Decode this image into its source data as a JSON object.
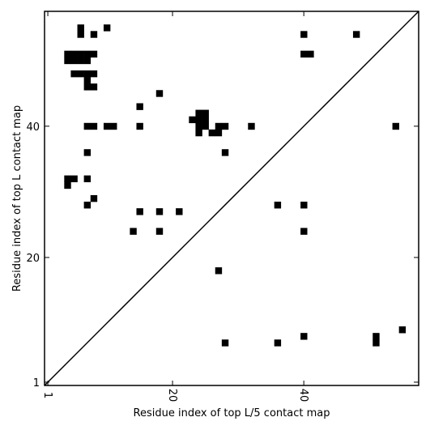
{
  "chart_data": {
    "type": "scatter",
    "xlabel": "Residue index of top L/5 contact map",
    "ylabel": "Residue index of top L contact map",
    "xlim": [
      0.5,
      57.5
    ],
    "ylim": [
      0.5,
      57.5
    ],
    "x_ticks": [
      {
        "value": 1,
        "label": "1"
      },
      {
        "value": 20,
        "label": "20"
      },
      {
        "value": 40,
        "label": "40"
      }
    ],
    "y_ticks": [
      {
        "value": 1,
        "label": "1"
      },
      {
        "value": 20,
        "label": "20"
      },
      {
        "value": 40,
        "label": "40"
      }
    ],
    "diagonal": true,
    "marker_color": "#000000",
    "series": [
      {
        "points": [
          [
            6,
            55
          ],
          [
            6,
            54
          ],
          [
            10,
            55
          ],
          [
            8,
            54
          ],
          [
            40,
            54
          ],
          [
            48,
            54
          ],
          [
            4,
            51
          ],
          [
            5,
            51
          ],
          [
            6,
            51
          ],
          [
            7,
            51
          ],
          [
            8,
            51
          ],
          [
            4,
            50
          ],
          [
            5,
            50
          ],
          [
            6,
            50
          ],
          [
            7,
            50
          ],
          [
            40,
            51
          ],
          [
            41,
            51
          ],
          [
            5,
            48
          ],
          [
            6,
            48
          ],
          [
            7,
            48
          ],
          [
            8,
            48
          ],
          [
            7,
            47
          ],
          [
            7,
            46
          ],
          [
            8,
            46
          ],
          [
            18,
            45
          ],
          [
            15,
            43
          ],
          [
            24,
            42
          ],
          [
            25,
            42
          ],
          [
            23,
            41
          ],
          [
            24,
            41
          ],
          [
            25,
            41
          ],
          [
            24,
            40
          ],
          [
            25,
            40
          ],
          [
            24,
            39
          ],
          [
            26,
            39
          ],
          [
            27,
            39
          ],
          [
            7,
            40
          ],
          [
            8,
            40
          ],
          [
            10,
            40
          ],
          [
            11,
            40
          ],
          [
            15,
            40
          ],
          [
            27,
            40
          ],
          [
            28,
            40
          ],
          [
            32,
            40
          ],
          [
            54,
            40
          ],
          [
            7,
            36
          ],
          [
            28,
            36
          ],
          [
            4,
            32
          ],
          [
            5,
            32
          ],
          [
            7,
            32
          ],
          [
            4,
            31
          ],
          [
            8,
            29
          ],
          [
            7,
            28
          ],
          [
            36,
            28
          ],
          [
            40,
            28
          ],
          [
            15,
            27
          ],
          [
            18,
            27
          ],
          [
            21,
            27
          ],
          [
            14,
            24
          ],
          [
            18,
            24
          ],
          [
            40,
            24
          ],
          [
            27,
            18
          ],
          [
            55,
            9
          ],
          [
            51,
            8
          ],
          [
            40,
            8
          ],
          [
            51,
            7
          ],
          [
            28,
            7
          ],
          [
            36,
            7
          ]
        ]
      }
    ]
  }
}
